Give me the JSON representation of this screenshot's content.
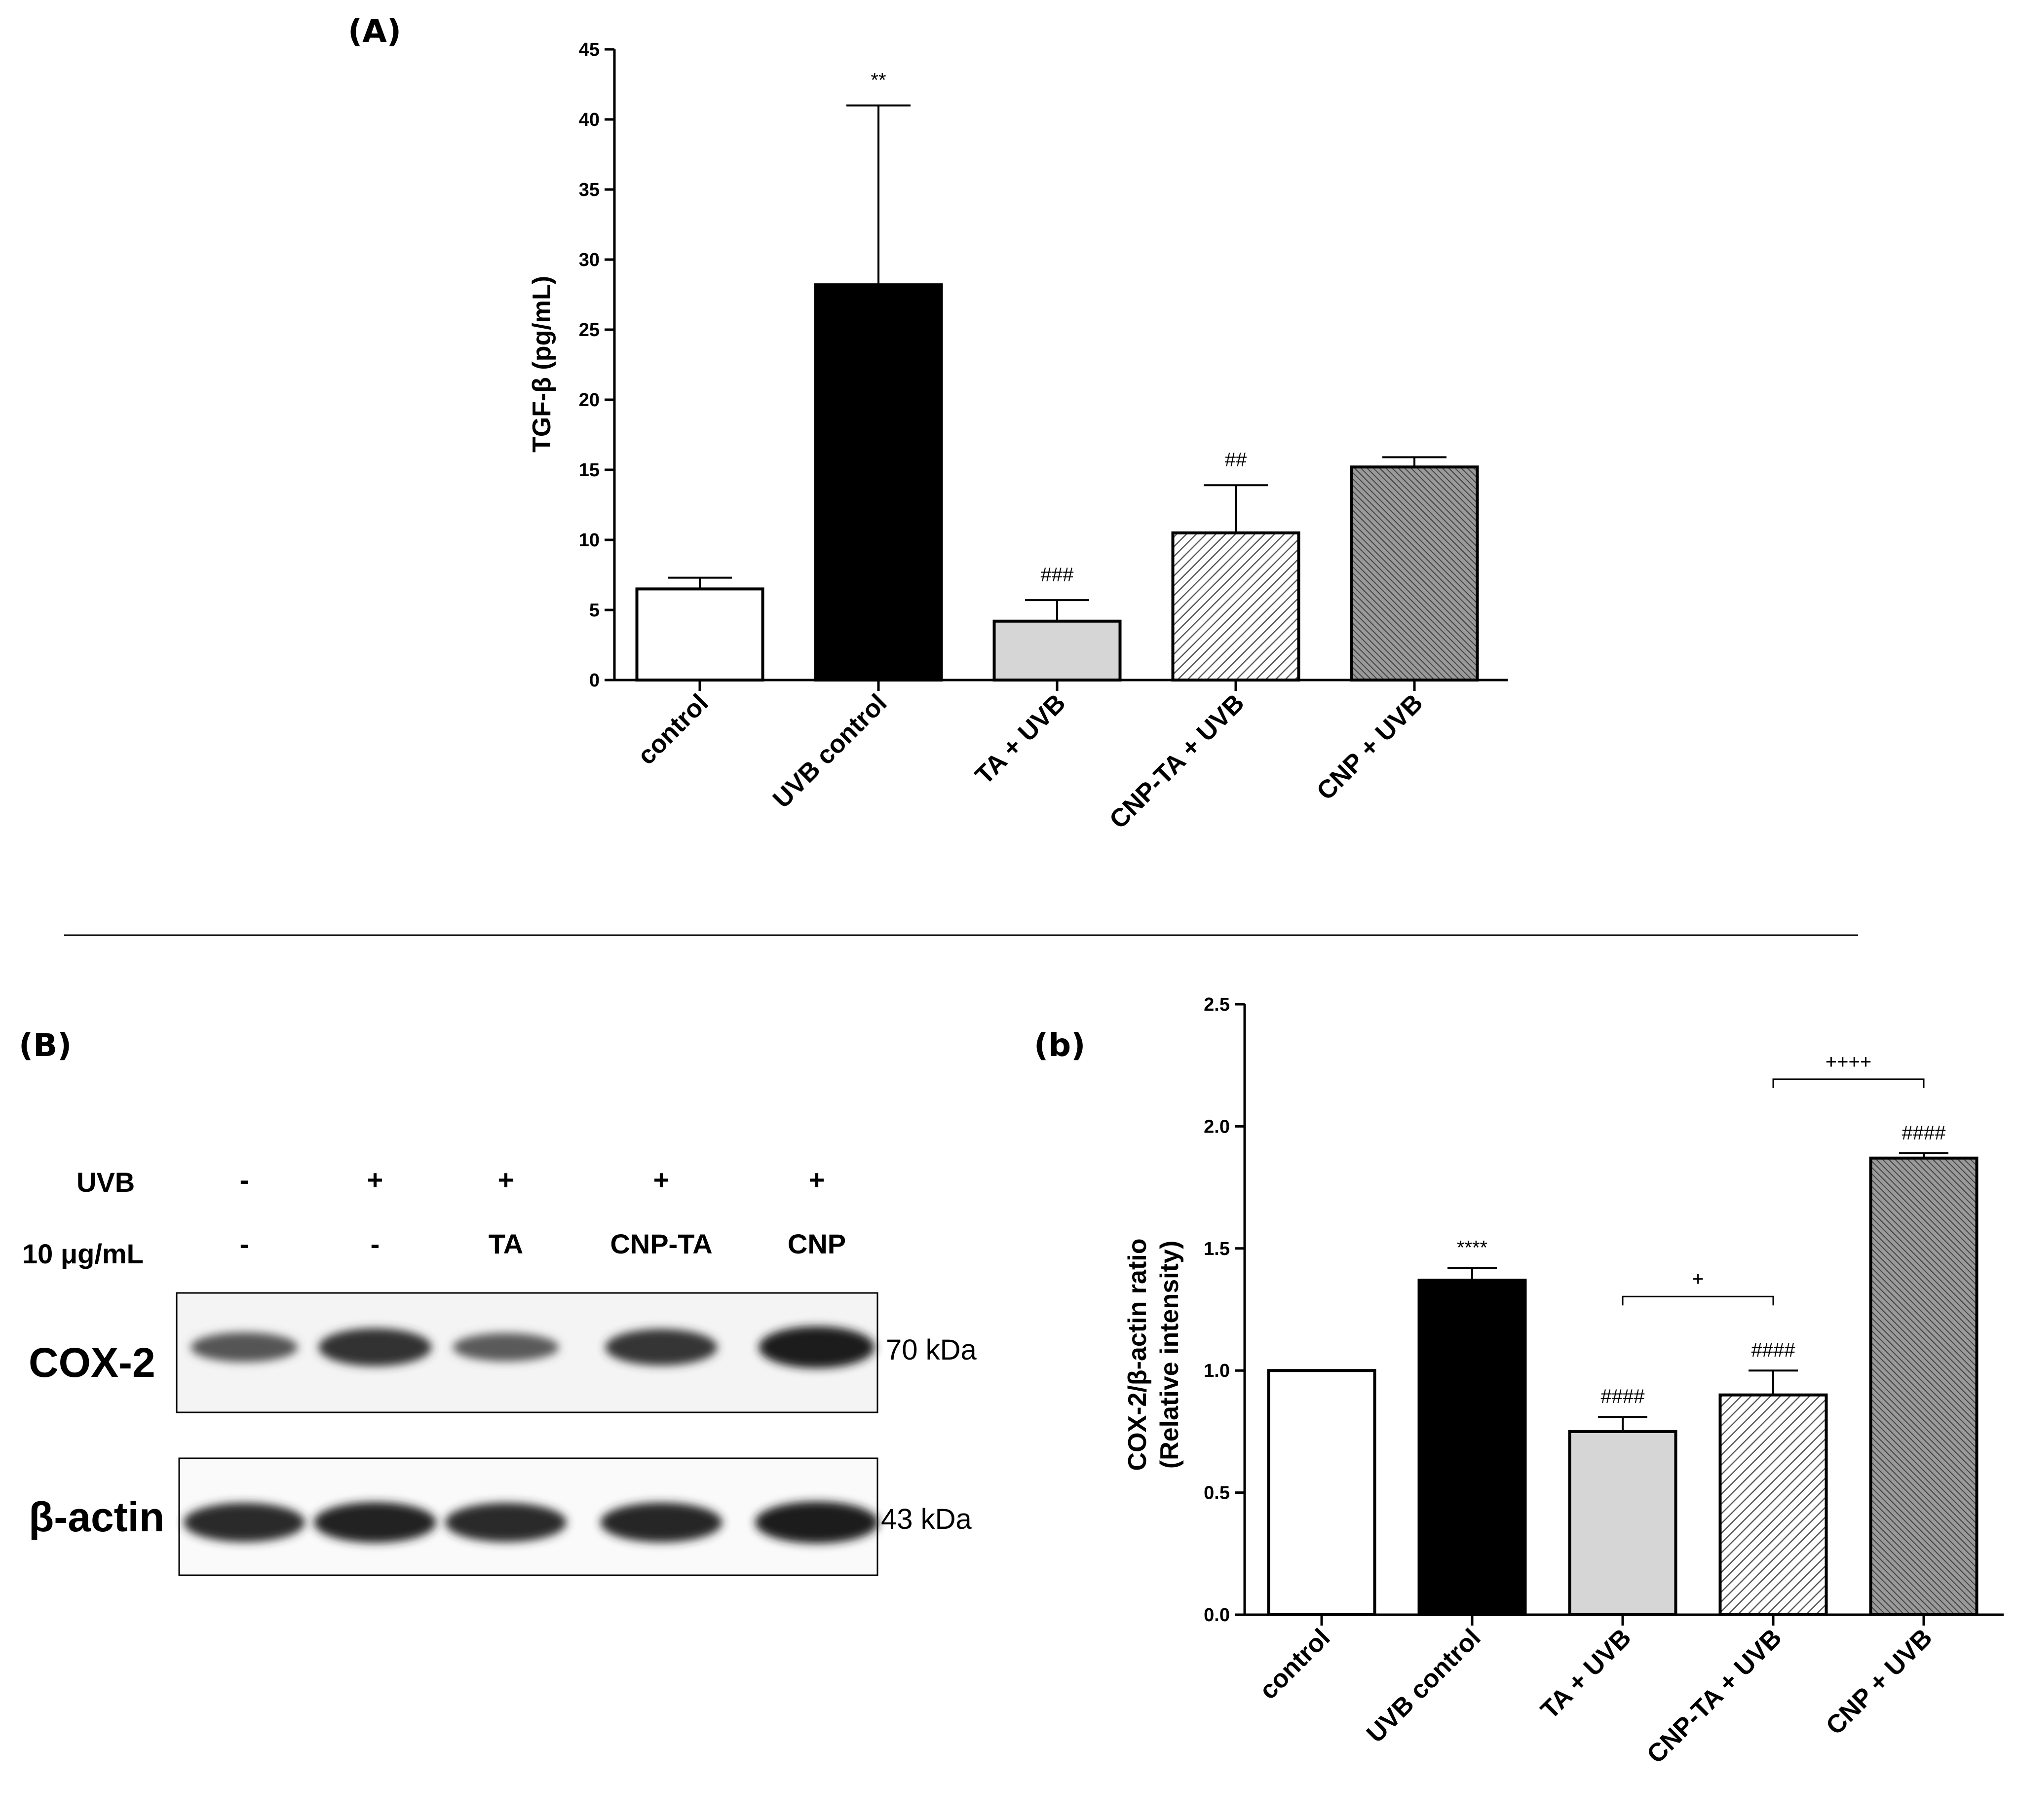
{
  "panels": {
    "A": "(A)",
    "B": "(B)",
    "b": "(b)"
  },
  "chart_data": [
    {
      "type": "bar",
      "panel": "A",
      "ylabel": "TGF-β (pg/mL)",
      "xlabel": "",
      "ylim": [
        0,
        45
      ],
      "yticks": [
        0,
        5,
        10,
        15,
        20,
        25,
        30,
        35,
        40,
        45
      ],
      "categories": [
        "control",
        "UVB control",
        "TA + UVB",
        "CNP-TA + UVB",
        "CNP + UVB"
      ],
      "values": [
        6.5,
        28.2,
        4.2,
        10.5,
        15.2
      ],
      "errors": [
        0.8,
        12.8,
        1.5,
        3.4,
        0.7
      ],
      "annotations": [
        "",
        "**",
        "###",
        "##",
        ""
      ],
      "fills": [
        "white",
        "black",
        "lightgray",
        "diagonal-hatch",
        "dense-hatch"
      ]
    },
    {
      "type": "bar",
      "panel": "b",
      "ylabel_lines": [
        "COX-2/β-actin ratio",
        "(Relative intensity)"
      ],
      "xlabel": "",
      "ylim": [
        0,
        2.5
      ],
      "yticks": [
        "0.0",
        "0.5",
        "1.0",
        "1.5",
        "2.0",
        "2.5"
      ],
      "categories": [
        "control",
        "UVB control",
        "TA + UVB",
        "CNP-TA + UVB",
        "CNP + UVB"
      ],
      "values": [
        1.0,
        1.37,
        0.75,
        0.9,
        1.87
      ],
      "errors": [
        0,
        0.05,
        0.06,
        0.1,
        0.02
      ],
      "annotations": [
        "",
        "****",
        "####",
        "####",
        "####"
      ],
      "brackets": [
        {
          "from": 2,
          "to": 3,
          "label": "+"
        },
        {
          "from": 3,
          "to": 4,
          "label": "++++"
        }
      ],
      "fills": [
        "white",
        "black",
        "lightgray",
        "diagonal-hatch",
        "dense-hatch"
      ]
    }
  ],
  "blot": {
    "row1_label": "UVB",
    "row1": [
      "-",
      "+",
      "+",
      "+",
      "+"
    ],
    "row2_label": "10 μg/mL",
    "row2": [
      "-",
      "-",
      "TA",
      "CNP-TA",
      "CNP"
    ],
    "bands": [
      {
        "name": "COX-2",
        "kda": "70 kDa",
        "intensities": [
          0.55,
          0.85,
          0.5,
          0.8,
          1.0
        ]
      },
      {
        "name": "β-actin",
        "kda": "43 kDa",
        "intensities": [
          0.9,
          0.95,
          0.9,
          0.92,
          1.0
        ]
      }
    ]
  }
}
